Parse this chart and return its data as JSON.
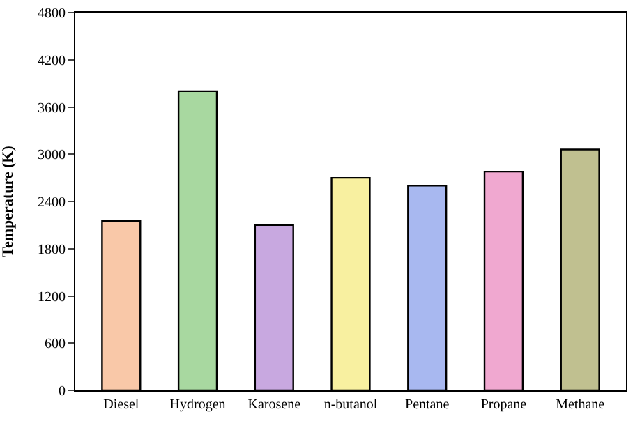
{
  "chart_data": {
    "type": "bar",
    "ylabel": "Temperature (K)",
    "categories": [
      "Diesel",
      "Hydrogen",
      "Karosene",
      "n-butanol",
      "Pentane",
      "Propane",
      "Methane"
    ],
    "values": [
      2150,
      3800,
      2100,
      2700,
      2600,
      2780,
      3060
    ],
    "colors": [
      "#f9c8a8",
      "#a8d8a0",
      "#c8a8e0",
      "#f8f0a0",
      "#a8b8f0",
      "#f0a8d0",
      "#c0c090"
    ],
    "ylim": [
      0,
      4800
    ],
    "yticks": [
      0,
      600,
      1200,
      1800,
      2400,
      3000,
      3600,
      4200,
      4800
    ]
  }
}
